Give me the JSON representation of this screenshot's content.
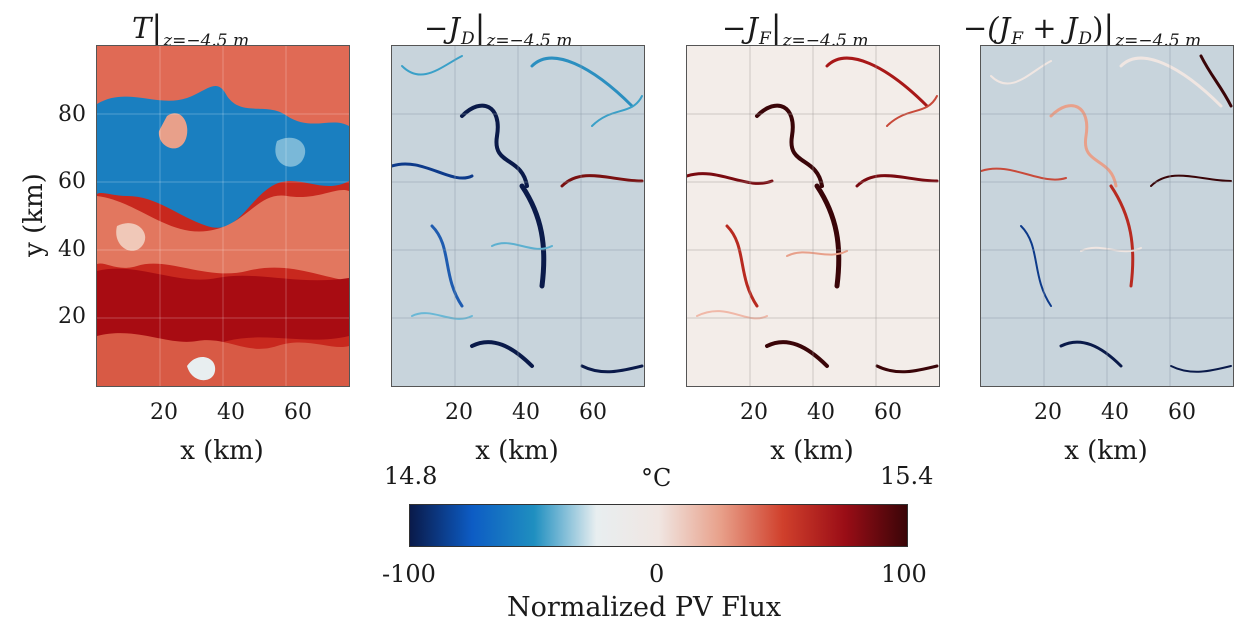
{
  "chart_data": [
    {
      "type": "heatmap",
      "title": "T",
      "title_subscript": "z=−4.5 m",
      "xlabel": "x (km)",
      "ylabel": "y (km)",
      "xticks": [
        "20",
        "40",
        "60"
      ],
      "yticks": [
        "20",
        "40",
        "60",
        "80"
      ],
      "xlim": [
        0,
        75
      ],
      "ylim": [
        0,
        100
      ],
      "units": "°C",
      "clim": [
        14.8,
        15.4
      ]
    },
    {
      "type": "heatmap",
      "title": "−J",
      "title_var_sub": "D",
      "title_subscript": "z=−4.5 m",
      "xlabel": "x (km)",
      "xticks": [
        "20",
        "40",
        "60"
      ],
      "xlim": [
        0,
        75
      ],
      "ylim": [
        0,
        100
      ],
      "clim": [
        -100,
        100
      ]
    },
    {
      "type": "heatmap",
      "title": "−J",
      "title_var_sub": "F",
      "title_subscript": "z=−4.5 m",
      "xlabel": "x (km)",
      "xticks": [
        "20",
        "40",
        "60"
      ],
      "xlim": [
        0,
        75
      ],
      "ylim": [
        0,
        100
      ],
      "clim": [
        -100,
        100
      ]
    },
    {
      "type": "heatmap",
      "title": "−(J",
      "title_var_sub": "F",
      "title_mid": " + J",
      "title_var_sub2": "D",
      "title_end": ")",
      "title_subscript": "z=−4.5 m",
      "xlabel": "x (km)",
      "xticks": [
        "20",
        "40",
        "60"
      ],
      "xlim": [
        0,
        75
      ],
      "ylim": [
        0,
        100
      ],
      "clim": [
        -100,
        100
      ]
    }
  ],
  "colorbar": {
    "temp_min": "14.8",
    "temp_unit": "°C",
    "temp_max": "15.4",
    "flux_min": "-100",
    "flux_mid": "0",
    "flux_max": "100",
    "label": "Normalized PV Flux",
    "colors": [
      "#0a1a4a",
      "#0d5cc4",
      "#1f8fc0",
      "#e8eef0",
      "#f0e6e2",
      "#e8a08a",
      "#d0402c",
      "#9a0d16",
      "#3a0508"
    ]
  },
  "colors": {
    "warm_red": "#c8281e",
    "dark_red": "#a80c12",
    "cold_blue": "#1a7fc0",
    "neutral_blue_gray": "#c8d4dc",
    "neutral_warm": "#f3ede9"
  }
}
